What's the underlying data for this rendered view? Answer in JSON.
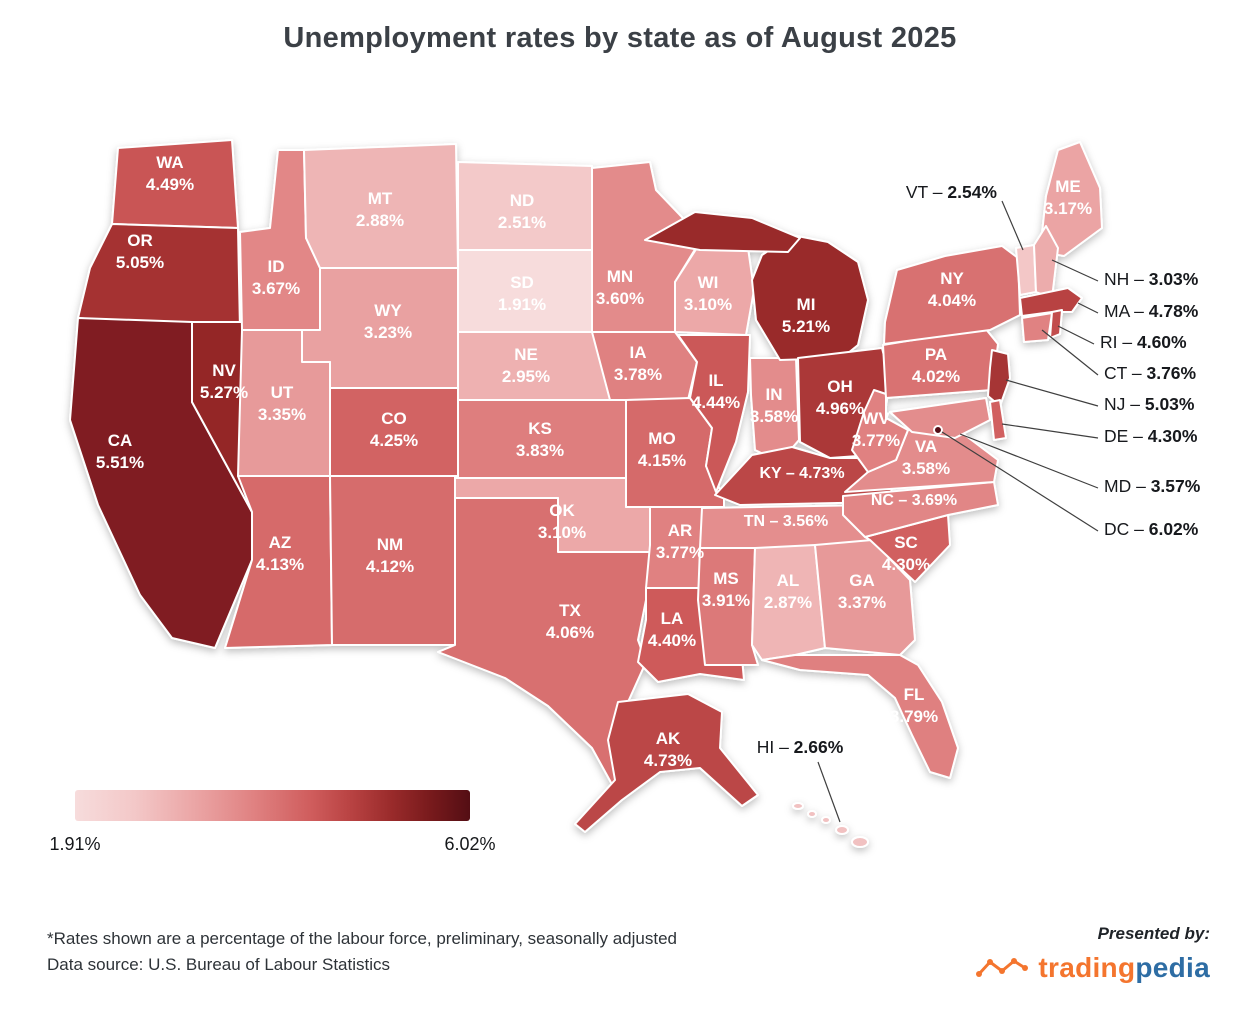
{
  "title": "Unemployment rates by state as of August 2025",
  "chart_data": {
    "type": "choropleth_map",
    "region": "United States",
    "value_unit": "%",
    "min_value": 1.91,
    "max_value": 6.02,
    "min_label": "1.91%",
    "max_label": "6.02%",
    "color_scale": {
      "stops": [
        [
          0,
          "#f7dcdc"
        ],
        [
          0.15,
          "#f3c8c8"
        ],
        [
          0.3,
          "#eba6a6"
        ],
        [
          0.45,
          "#e08282"
        ],
        [
          0.6,
          "#cf5c5c"
        ],
        [
          0.7,
          "#b84242"
        ],
        [
          0.8,
          "#9a2b2b"
        ],
        [
          0.9,
          "#781a1c"
        ],
        [
          1,
          "#540e14"
        ]
      ]
    },
    "states": [
      {
        "abbr": "AL",
        "value": 2.87
      },
      {
        "abbr": "AK",
        "value": 4.73
      },
      {
        "abbr": "AZ",
        "value": 4.13
      },
      {
        "abbr": "AR",
        "value": 3.77
      },
      {
        "abbr": "CA",
        "value": 5.51
      },
      {
        "abbr": "CO",
        "value": 4.25
      },
      {
        "abbr": "CT",
        "value": 3.76
      },
      {
        "abbr": "DE",
        "value": 4.3
      },
      {
        "abbr": "DC",
        "value": 6.02
      },
      {
        "abbr": "FL",
        "value": 3.79
      },
      {
        "abbr": "GA",
        "value": 3.37
      },
      {
        "abbr": "HI",
        "value": 2.66
      },
      {
        "abbr": "ID",
        "value": 3.67
      },
      {
        "abbr": "IL",
        "value": 4.44
      },
      {
        "abbr": "IN",
        "value": 3.58
      },
      {
        "abbr": "IA",
        "value": 3.78
      },
      {
        "abbr": "KS",
        "value": 3.83
      },
      {
        "abbr": "KY",
        "value": 4.73
      },
      {
        "abbr": "LA",
        "value": 4.4
      },
      {
        "abbr": "ME",
        "value": 3.17
      },
      {
        "abbr": "MD",
        "value": 3.57
      },
      {
        "abbr": "MA",
        "value": 4.78
      },
      {
        "abbr": "MI",
        "value": 5.21
      },
      {
        "abbr": "MN",
        "value": 3.6
      },
      {
        "abbr": "MS",
        "value": 3.91
      },
      {
        "abbr": "MO",
        "value": 4.15
      },
      {
        "abbr": "MT",
        "value": 2.88
      },
      {
        "abbr": "NE",
        "value": 2.95
      },
      {
        "abbr": "NV",
        "value": 5.27
      },
      {
        "abbr": "NH",
        "value": 3.03
      },
      {
        "abbr": "NJ",
        "value": 5.03
      },
      {
        "abbr": "NM",
        "value": 4.12
      },
      {
        "abbr": "NY",
        "value": 4.04
      },
      {
        "abbr": "NC",
        "value": 3.69
      },
      {
        "abbr": "ND",
        "value": 2.51
      },
      {
        "abbr": "OH",
        "value": 4.96
      },
      {
        "abbr": "OK",
        "value": 3.1
      },
      {
        "abbr": "OR",
        "value": 5.05
      },
      {
        "abbr": "PA",
        "value": 4.02
      },
      {
        "abbr": "RI",
        "value": 4.6
      },
      {
        "abbr": "SC",
        "value": 4.3
      },
      {
        "abbr": "SD",
        "value": 1.91
      },
      {
        "abbr": "TN",
        "value": 3.56
      },
      {
        "abbr": "TX",
        "value": 4.06
      },
      {
        "abbr": "UT",
        "value": 3.35
      },
      {
        "abbr": "VT",
        "value": 2.54
      },
      {
        "abbr": "VA",
        "value": 3.58
      },
      {
        "abbr": "WA",
        "value": 4.49
      },
      {
        "abbr": "WV",
        "value": 3.77
      },
      {
        "abbr": "WI",
        "value": 3.1
      },
      {
        "abbr": "WY",
        "value": 3.23
      }
    ]
  },
  "footnote": {
    "line1": "*Rates shown are a percentage of the labour force, preliminary, seasonally adjusted",
    "line2": "Data source: U.S. Bureau of Labour Statistics"
  },
  "branding": {
    "presented_by": "Presented by:",
    "logo_part1": "trading",
    "logo_part2": "pedia"
  }
}
